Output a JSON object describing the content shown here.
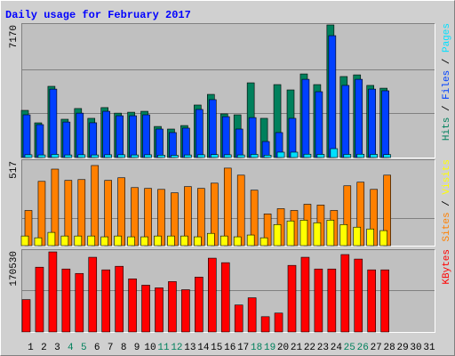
{
  "chart_data": [
    {
      "type": "bar",
      "title": "Daily usage for February 2017",
      "categories": [
        "1",
        "2",
        "3",
        "4",
        "5",
        "6",
        "7",
        "8",
        "9",
        "10",
        "11",
        "12",
        "13",
        "14",
        "15",
        "16",
        "17",
        "18",
        "19",
        "20",
        "21",
        "22",
        "23",
        "24",
        "25",
        "26",
        "27",
        "28",
        "29",
        "30",
        "31"
      ],
      "category_colors": [
        "#000000",
        "#000000",
        "#000000",
        "#00805c",
        "#00805c",
        "#000000",
        "#000000",
        "#000000",
        "#000000",
        "#000000",
        "#00805c",
        "#00805c",
        "#000000",
        "#000000",
        "#000000",
        "#000000",
        "#000000",
        "#00805c",
        "#00805c",
        "#000000",
        "#000000",
        "#000000",
        "#000000",
        "#000000",
        "#00805c",
        "#00805c",
        "#000000",
        "#000000",
        "#000000",
        "#000000",
        "#000000"
      ],
      "ylim": [
        0,
        7170
      ],
      "yticks": [
        7170
      ],
      "gridlines": [
        2390,
        4780
      ],
      "legend_separator": " / ",
      "series": [
        {
          "name": "Pages",
          "color": "#00e0ff",
          "values": [
            150,
            140,
            170,
            140,
            150,
            140,
            150,
            150,
            140,
            150,
            130,
            120,
            140,
            150,
            160,
            150,
            140,
            170,
            130,
            290,
            290,
            180,
            170,
            480,
            170,
            180,
            170,
            160,
            null,
            null,
            null
          ]
        },
        {
          "name": "Files",
          "color": "#0040ff",
          "values": [
            2310,
            1780,
            3700,
            1920,
            2400,
            1880,
            2500,
            2260,
            2260,
            2310,
            1540,
            1350,
            1590,
            2600,
            3130,
            2210,
            1540,
            2160,
            866,
            1350,
            2120,
            4230,
            3560,
            6590,
            3900,
            4230,
            3700,
            3610,
            null,
            null,
            null
          ]
        },
        {
          "name": "Hits",
          "color": "#00805c",
          "values": [
            2550,
            1876,
            3850,
            2070,
            2650,
            2120,
            2700,
            2400,
            2450,
            2500,
            1680,
            1540,
            1730,
            2840,
            3415,
            2360,
            2310,
            4040,
            2120,
            3944,
            3656,
            4520,
            3944,
            7170,
            4380,
            4470,
            3900,
            3750,
            null,
            null,
            null
          ]
        }
      ]
    },
    {
      "type": "bar",
      "ylim": [
        0,
        517
      ],
      "yticks": [
        517
      ],
      "gridlines": [
        167
      ],
      "legend_separator": " / ",
      "series": [
        {
          "name": "Sites",
          "color": "#ff8000",
          "values": [
            215,
            393,
            468,
            399,
            404,
            490,
            399,
            415,
            355,
            350,
            344,
            323,
            361,
            350,
            382,
            474,
            431,
            339,
            194,
            226,
            215,
            253,
            248,
            215,
            366,
            388,
            344,
            431,
            null,
            null,
            null
          ]
        },
        {
          "name": "Visits",
          "color": "#ffff00",
          "values": [
            59,
            48,
            81,
            59,
            59,
            59,
            54,
            59,
            54,
            54,
            59,
            59,
            59,
            54,
            75,
            59,
            54,
            65,
            48,
            129,
            151,
            156,
            140,
            156,
            129,
            113,
            102,
            92,
            null,
            null,
            null
          ]
        }
      ]
    },
    {
      "type": "bar",
      "ylim": [
        0,
        170530
      ],
      "yticks": [
        170530
      ],
      "gridlines": [
        89000
      ],
      "series": [
        {
          "name": "KBytes",
          "color": "#ff0000",
          "values": [
            68200,
            136400,
            168600,
            132600,
            123200,
            157300,
            130800,
            138300,
            111800,
            98500,
            92900,
            106100,
            89000,
            115600,
            155400,
            145900,
            56800,
            72000,
            32200,
            39800,
            140200,
            157300,
            132600,
            132600,
            163000,
            153500,
            130800,
            130800,
            null,
            null,
            null
          ]
        }
      ]
    }
  ]
}
